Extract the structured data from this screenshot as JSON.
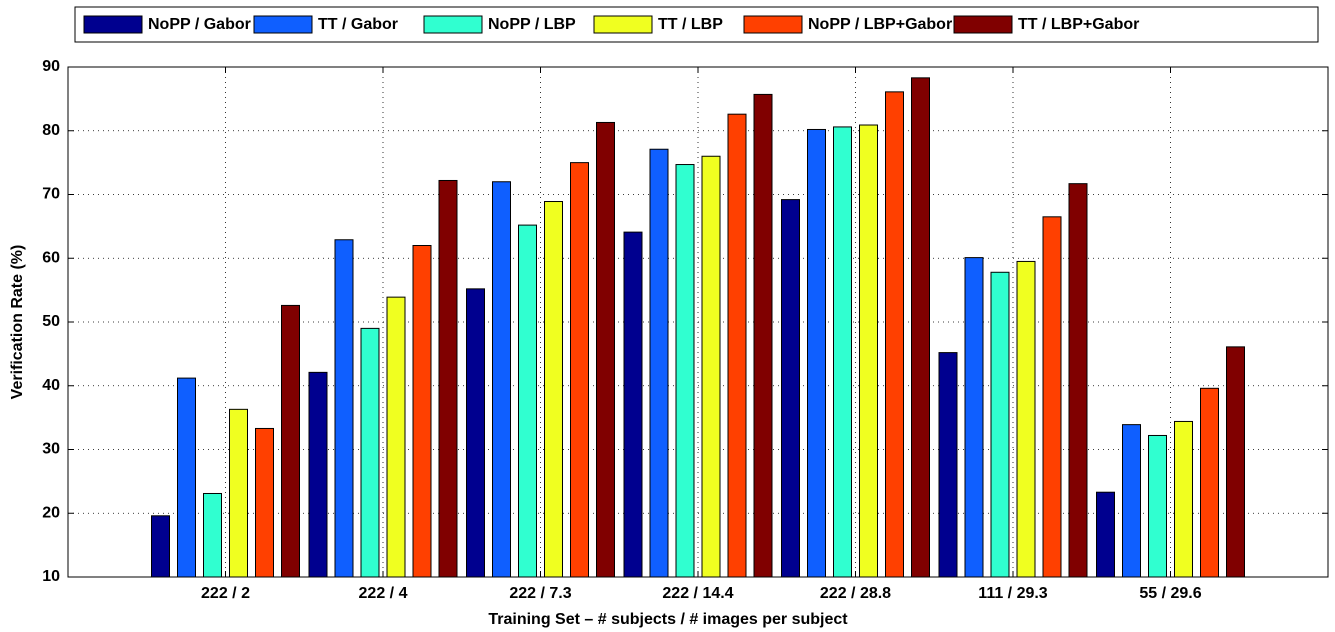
{
  "chart_data": {
    "type": "bar",
    "x_label": "Training Set – # subjects / # images per subject",
    "y_label": "Verification Rate (%)",
    "categories": [
      "222 / 2",
      "222 / 4",
      "222 / 7.3",
      "222 / 14.4",
      "222 / 28.8",
      "111 / 29.3",
      "55 / 29.6"
    ],
    "series": [
      {
        "name": "NoPP / Gabor",
        "color": "#00008f",
        "values": [
          19.6,
          42.1,
          55.2,
          64.1,
          69.2,
          45.2,
          23.3
        ]
      },
      {
        "name": "TT / Gabor",
        "color": "#0f5fff",
        "values": [
          41.2,
          62.9,
          72.0,
          77.1,
          80.2,
          60.1,
          33.9
        ]
      },
      {
        "name": "NoPP / LBP",
        "color": "#30ffd0",
        "values": [
          23.1,
          49.0,
          65.2,
          74.7,
          80.6,
          57.8,
          32.2
        ]
      },
      {
        "name": "TT / LBP",
        "color": "#f0ff20",
        "values": [
          36.3,
          53.9,
          68.9,
          76.0,
          80.9,
          59.5,
          34.4
        ]
      },
      {
        "name": "NoPP / LBP+Gabor",
        "color": "#ff4000",
        "values": [
          33.3,
          62.0,
          75.0,
          82.6,
          86.1,
          66.5,
          39.6
        ]
      },
      {
        "name": "TT / LBP+Gabor",
        "color": "#800000",
        "values": [
          52.6,
          72.2,
          81.3,
          85.7,
          88.3,
          71.7,
          46.1
        ]
      }
    ],
    "ylim": [
      10,
      90
    ],
    "yticks": [
      10,
      20,
      30,
      40,
      50,
      60,
      70,
      80,
      90
    ],
    "grid": true,
    "legend": "top"
  }
}
